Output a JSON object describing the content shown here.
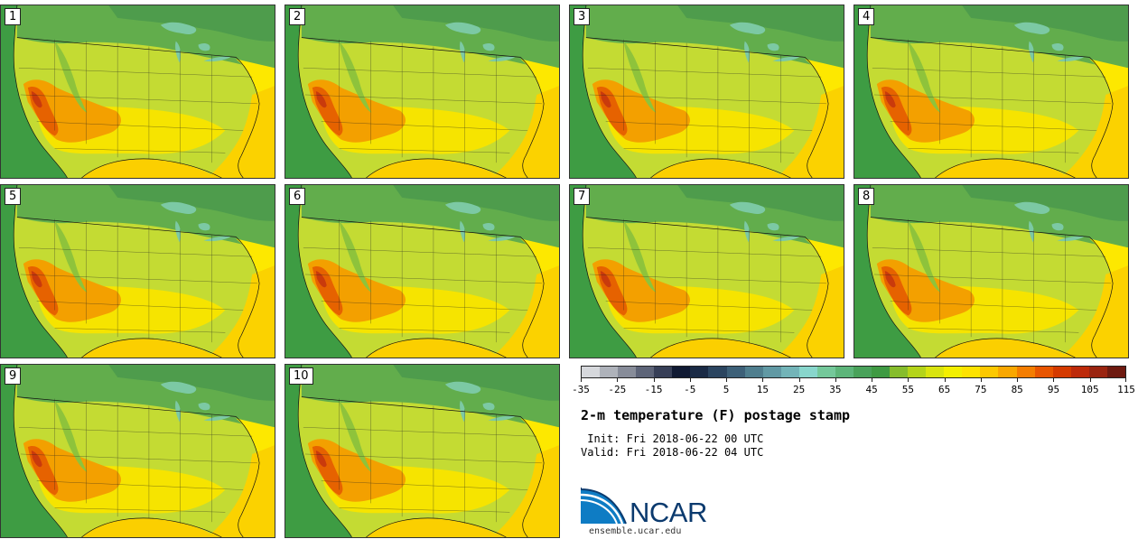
{
  "panels": [
    {
      "label": "1"
    },
    {
      "label": "2"
    },
    {
      "label": "3"
    },
    {
      "label": "4"
    },
    {
      "label": "5"
    },
    {
      "label": "6"
    },
    {
      "label": "7"
    },
    {
      "label": "8"
    },
    {
      "label": "9"
    },
    {
      "label": "10"
    }
  ],
  "colorbar": {
    "colors": [
      "#d6d8dc",
      "#aeb2ba",
      "#878c99",
      "#5d6478",
      "#373f57",
      "#101a33",
      "#1a2a45",
      "#2b4560",
      "#3d6078",
      "#4f7e8e",
      "#6199a4",
      "#73b4b8",
      "#88d6cc",
      "#74c89a",
      "#5db57a",
      "#49a25a",
      "#3f9a43",
      "#86bd2c",
      "#b4d41a",
      "#d9e40f",
      "#f3ef00",
      "#fde200",
      "#fcc800",
      "#f9a700",
      "#f47d00",
      "#e85500",
      "#d43a00",
      "#bd2a0a",
      "#9a2410",
      "#6e1a10"
    ],
    "tick_labels": [
      "-35",
      "-25",
      "-15",
      "-5",
      "5",
      "15",
      "25",
      "35",
      "45",
      "55",
      "65",
      "75",
      "85",
      "95",
      "105",
      "115"
    ],
    "min": -35,
    "max": 115
  },
  "title": "2-m temperature (F) postage stamp",
  "init_text": " Init: Fri 2018-06-22 00 UTC",
  "valid_text": "Valid: Fri 2018-06-22 04 UTC",
  "logo": {
    "text": "NCAR",
    "site": "ensemble.ucar.edu"
  },
  "colors": {
    "ocean": "#3c9a40",
    "land": "#c4db33",
    "hot": "#f4a000",
    "very_hot": "#e24a00",
    "cool": "#4ea75a"
  }
}
